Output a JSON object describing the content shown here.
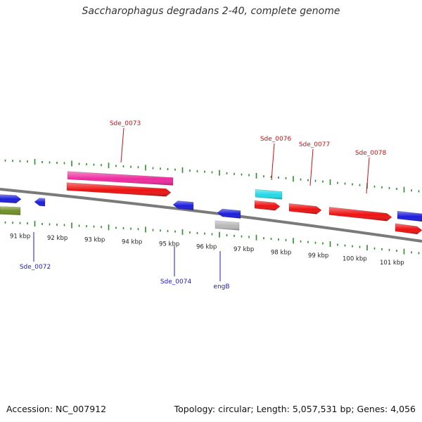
{
  "title": "Saccharophagus degradans 2-40, complete genome",
  "footer": {
    "accession": "Accession: NC_007912",
    "info": "Topology: circular; Length: 5,057,531 bp; Genes: 4,056"
  },
  "colors": {
    "backbone": "#7a7a7a",
    "ticks": "#2e8b2e",
    "red": "#ee1111",
    "magenta": "#ee2a9e",
    "cyan": "#22d8e8",
    "blue": "#1c1cdd",
    "olive": "#6f8f24",
    "grey": "#b8b8b8",
    "label_top": "#cc1111",
    "label_bottom": "#1a1acc"
  },
  "ruler_labels": [
    "91 kbp",
    "92 kbp",
    "93 kbp",
    "94 kbp",
    "95 kbp",
    "96 kbp",
    "97 kbp",
    "98 kbp",
    "99 kbp",
    "100 kbp",
    "101 kbp"
  ],
  "gene_labels": [
    {
      "text": "Sde_0073",
      "strand": "top"
    },
    {
      "text": "Sde_0076",
      "strand": "top"
    },
    {
      "text": "Sde_0077",
      "strand": "top"
    },
    {
      "text": "Sde_0078",
      "strand": "top"
    },
    {
      "text": "Sde_0072",
      "strand": "bottom"
    },
    {
      "text": "Sde_0074",
      "strand": "bottom"
    },
    {
      "text": "engB",
      "strand": "bottom"
    }
  ]
}
